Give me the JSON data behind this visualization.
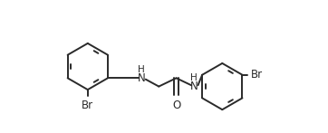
{
  "bg_color": "#ffffff",
  "line_color": "#2a2a2a",
  "lw": 1.4,
  "fs": 8.5,
  "figsize": [
    3.62,
    1.47
  ],
  "dpi": 100,
  "xlim": [
    -0.2,
    3.8
  ],
  "ylim": [
    -0.6,
    1.5
  ]
}
